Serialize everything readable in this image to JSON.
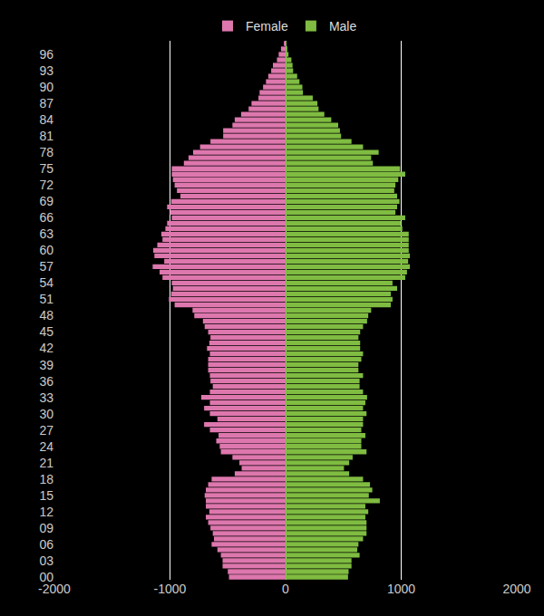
{
  "chart_data": {
    "type": "bar",
    "orientation": "horizontal",
    "stacked": true,
    "grid": true,
    "legend": "top",
    "categories": [
      "00",
      null,
      null,
      "03",
      null,
      null,
      "06",
      null,
      null,
      "09",
      null,
      null,
      "12",
      null,
      null,
      "15",
      null,
      null,
      "18",
      null,
      null,
      "21",
      null,
      null,
      "24",
      null,
      null,
      "27",
      null,
      null,
      "30",
      null,
      null,
      "33",
      null,
      null,
      "36",
      null,
      null,
      "39",
      null,
      null,
      "42",
      null,
      null,
      "45",
      null,
      null,
      "48",
      null,
      null,
      "51",
      null,
      null,
      "54",
      null,
      null,
      "57",
      null,
      null,
      "60",
      null,
      null,
      "63",
      null,
      null,
      "66",
      null,
      null,
      "69",
      null,
      null,
      "72",
      null,
      null,
      "75",
      null,
      null,
      "78",
      null,
      null,
      "81",
      null,
      null,
      "84",
      null,
      null,
      "87",
      null,
      null,
      "90",
      null,
      null,
      "93",
      null,
      null,
      "96",
      null,
      null
    ],
    "series": [
      {
        "name": "Female",
        "color": "#de77ae",
        "values": [
          -490,
          -500,
          -545,
          -545,
          -560,
          -590,
          -640,
          -620,
          -630,
          -650,
          -670,
          -690,
          -660,
          -690,
          -690,
          -700,
          -690,
          -670,
          -640,
          -440,
          -380,
          -400,
          -460,
          -560,
          -570,
          -600,
          -580,
          -655,
          -705,
          -590,
          -655,
          -705,
          -655,
          -730,
          -655,
          -630,
          -650,
          -655,
          -670,
          -670,
          -670,
          -655,
          -680,
          -660,
          -650,
          -670,
          -700,
          -715,
          -790,
          -805,
          -960,
          -1010,
          -990,
          -975,
          -985,
          -1065,
          -1090,
          -1150,
          -1050,
          -1135,
          -1145,
          -1110,
          -1065,
          -1075,
          -1040,
          -1025,
          -985,
          -1000,
          -1025,
          -990,
          -910,
          -940,
          -960,
          -975,
          -985,
          -985,
          -880,
          -840,
          -800,
          -740,
          -650,
          -540,
          -540,
          -460,
          -440,
          -385,
          -320,
          -295,
          -235,
          -225,
          -195,
          -170,
          -150,
          -125,
          -110,
          -75,
          -60,
          -40,
          -15
        ]
      },
      {
        "name": "Male",
        "color": "#7fbc41",
        "values": [
          540,
          545,
          570,
          570,
          640,
          620,
          630,
          670,
          700,
          700,
          700,
          690,
          715,
          690,
          815,
          720,
          750,
          730,
          670,
          550,
          505,
          550,
          580,
          700,
          655,
          655,
          690,
          655,
          670,
          670,
          700,
          670,
          690,
          705,
          670,
          640,
          640,
          670,
          630,
          630,
          655,
          670,
          645,
          645,
          630,
          645,
          670,
          705,
          715,
          740,
          910,
          925,
          910,
          965,
          925,
          1035,
          1050,
          1075,
          1060,
          1075,
          1065,
          1065,
          1065,
          1065,
          1010,
          1000,
          1035,
          950,
          965,
          985,
          965,
          940,
          950,
          975,
          1035,
          990,
          755,
          740,
          805,
          670,
          570,
          480,
          470,
          455,
          395,
          335,
          285,
          275,
          235,
          150,
          145,
          120,
          100,
          65,
          60,
          50,
          25,
          15,
          8
        ]
      }
    ],
    "xlim": [
      -2000,
      2000
    ],
    "xticks": [
      -2000,
      -1000,
      0,
      1000,
      2000
    ]
  }
}
